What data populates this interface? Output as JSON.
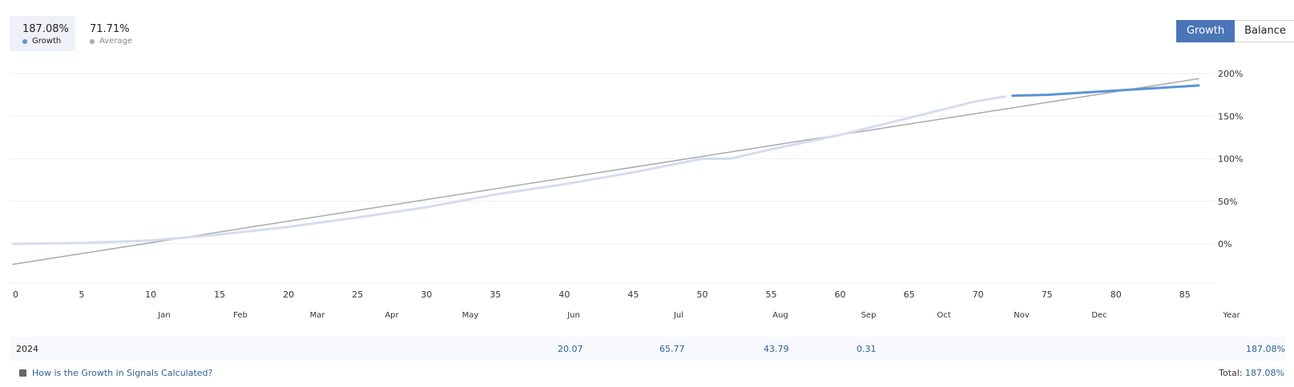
{
  "stats": {
    "growth": {
      "value": "187.08%",
      "label": "Growth",
      "color": "#5b93d6"
    },
    "average": {
      "value": "71.71%",
      "label": "Average",
      "color": "#aaaaaa"
    }
  },
  "toggle": {
    "growth_label": "Growth",
    "balance_label": "Balance"
  },
  "chart_data": {
    "type": "line",
    "x_ticks": [
      0,
      5,
      10,
      15,
      20,
      25,
      30,
      35,
      40,
      45,
      50,
      55,
      60,
      65,
      70,
      75,
      80,
      85
    ],
    "y_ticks": [
      "200%",
      "150%",
      "100%",
      "50%",
      "0%"
    ],
    "y_tick_values": [
      200,
      150,
      100,
      50,
      0
    ],
    "xlim": [
      0,
      86
    ],
    "ylim": [
      -45,
      210
    ],
    "months": [
      "Jan",
      "Feb",
      "Mar",
      "Apr",
      "May",
      "Jun",
      "Jul",
      "Aug",
      "Sep",
      "Oct",
      "Nov",
      "Dec",
      "Year"
    ],
    "grid": true,
    "series": [
      {
        "name": "Growth",
        "color": "#d4dcf0",
        "values": [
          [
            0,
            0
          ],
          [
            5,
            1
          ],
          [
            10,
            4
          ],
          [
            15,
            11
          ],
          [
            20,
            20
          ],
          [
            25,
            31
          ],
          [
            30,
            43
          ],
          [
            35,
            58
          ],
          [
            40,
            70
          ],
          [
            45,
            84
          ],
          [
            50,
            100
          ],
          [
            52,
            100
          ],
          [
            55,
            111
          ],
          [
            60,
            128
          ],
          [
            65,
            148
          ],
          [
            70,
            168
          ],
          [
            72,
            173
          ]
        ]
      },
      {
        "name": "Growth",
        "color": "#5b93d6",
        "values": [
          [
            72.5,
            174
          ],
          [
            75,
            175
          ],
          [
            80,
            180
          ],
          [
            85,
            185
          ],
          [
            86,
            186
          ]
        ]
      },
      {
        "name": "Average",
        "color": "#aaaaaa",
        "values": [
          [
            0,
            -24
          ],
          [
            86,
            194
          ]
        ]
      }
    ]
  },
  "year_row": {
    "year": "2024",
    "cells": [
      {
        "month": "Jun",
        "value": "20.07"
      },
      {
        "month": "Jul",
        "value": "65.77"
      },
      {
        "month": "Aug",
        "value": "43.79"
      },
      {
        "month": "Sep",
        "value": "0.31"
      }
    ],
    "total": "187.08%"
  },
  "footer": {
    "link": "How is the Growth in Signals Calculated?",
    "total_label": "Total:",
    "total_value": "187.08%"
  }
}
